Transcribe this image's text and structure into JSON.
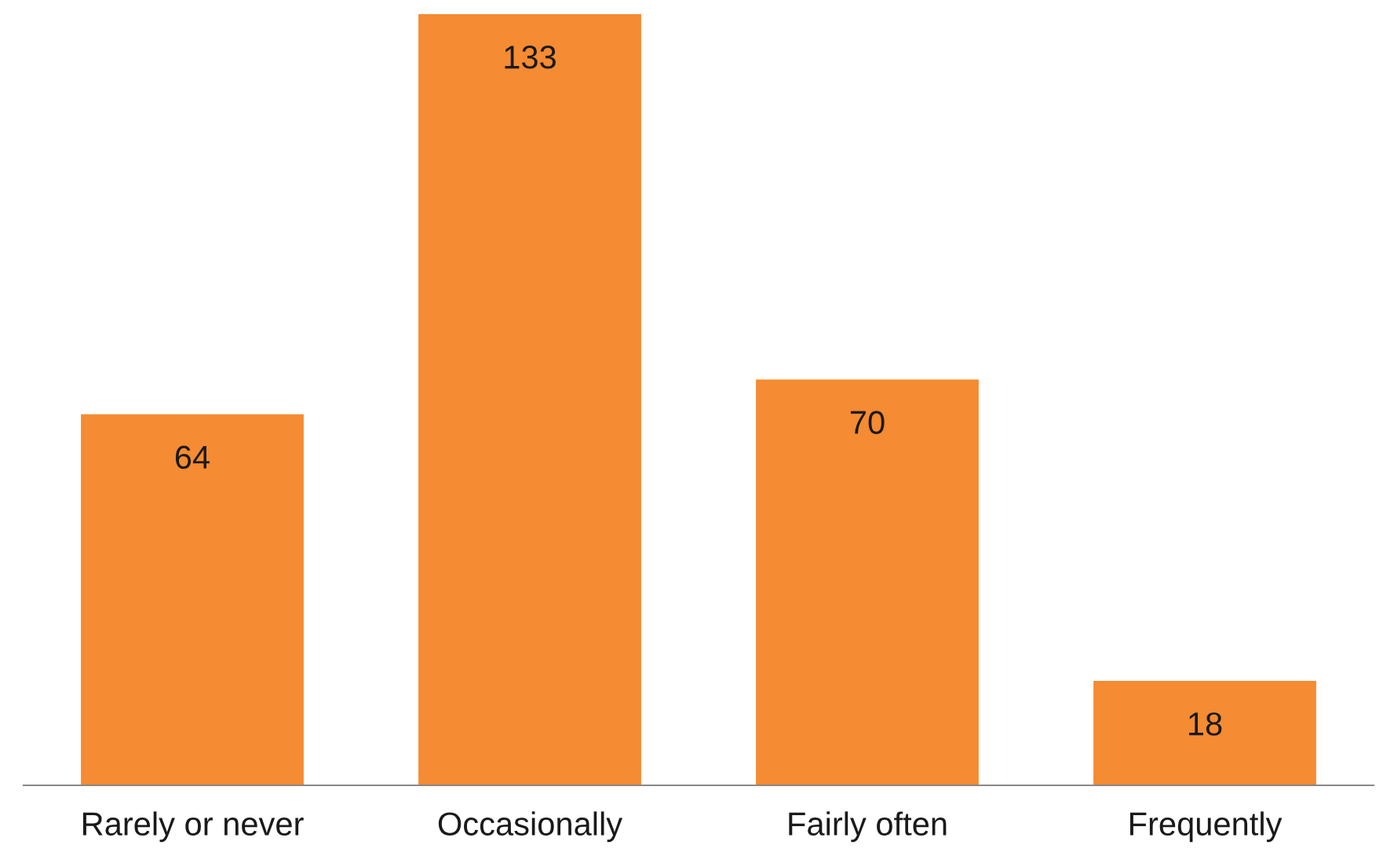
{
  "chart_data": {
    "type": "bar",
    "categories": [
      "Rarely or never",
      "Occasionally",
      "Fairly often",
      "Frequently"
    ],
    "values": [
      64,
      133,
      70,
      18
    ],
    "color": "#f58b32",
    "data_labels": true,
    "grid": false,
    "legend": false
  }
}
